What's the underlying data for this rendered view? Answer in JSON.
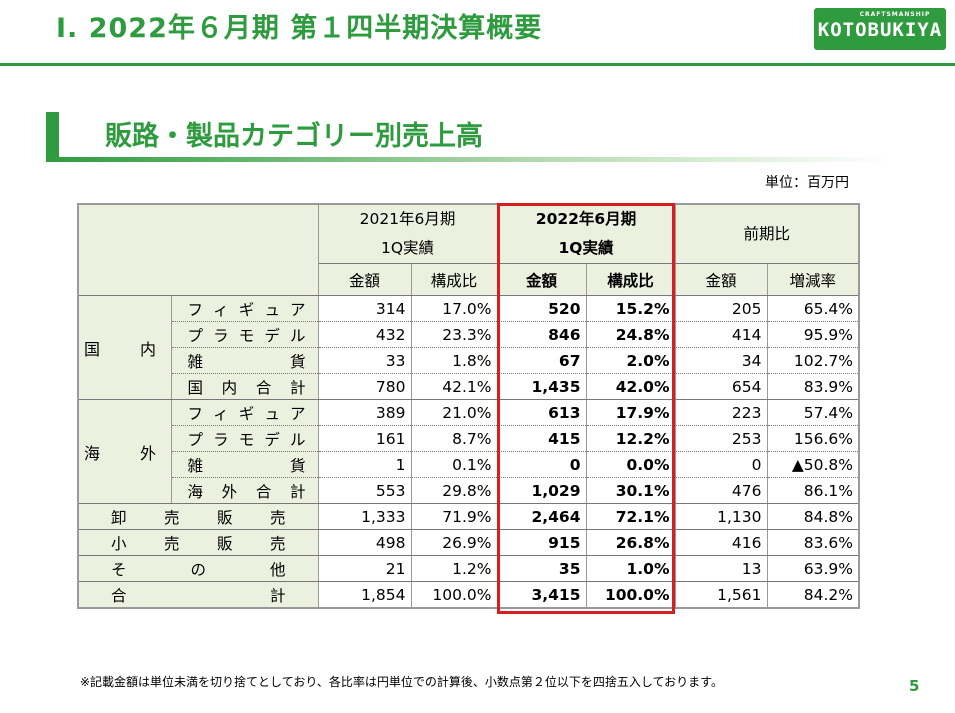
{
  "header": {
    "title": "Ⅰ. 2022年６月期 第１四半期決算概要",
    "logo_sub": "CRAFTSMANSHIP",
    "logo_main": "KOTOBUKIYA"
  },
  "section": {
    "title": "販路・製品カテゴリー別売上高"
  },
  "unit_label": "単位：百万円",
  "table": {
    "col_groups": [
      "2021年6月期\n1Q実績",
      "2022年6月期\n1Q実績",
      "前期比"
    ],
    "col_groups_lines": [
      [
        "2021年6月期",
        "1Q実績"
      ],
      [
        "2022年6月期",
        "1Q実績"
      ],
      [
        "前期比"
      ]
    ],
    "sub_headers": [
      "金額",
      "構成比",
      "金額",
      "構成比",
      "金額",
      "増減率"
    ],
    "segments": [
      {
        "name": "国　内",
        "rows": [
          {
            "label": "フィギュア",
            "v": [
              "314",
              "17.0%",
              "520",
              "15.2%",
              "205",
              "65.4%"
            ]
          },
          {
            "label": "プラモデル",
            "v": [
              "432",
              "23.3%",
              "846",
              "24.8%",
              "414",
              "95.9%"
            ]
          },
          {
            "label": "雑貨",
            "v": [
              "33",
              "1.8%",
              "67",
              "2.0%",
              "34",
              "102.7%"
            ]
          },
          {
            "label": "国内合計",
            "v": [
              "780",
              "42.1%",
              "1,435",
              "42.0%",
              "654",
              "83.9%"
            ]
          }
        ]
      },
      {
        "name": "海　外",
        "rows": [
          {
            "label": "フィギュア",
            "v": [
              "389",
              "21.0%",
              "613",
              "17.9%",
              "223",
              "57.4%"
            ]
          },
          {
            "label": "プラモデル",
            "v": [
              "161",
              "8.7%",
              "415",
              "12.2%",
              "253",
              "156.6%"
            ]
          },
          {
            "label": "雑貨",
            "v": [
              "1",
              "0.1%",
              "0",
              "0.0%",
              "0",
              "▲50.8%"
            ]
          },
          {
            "label": "海外合計",
            "v": [
              "553",
              "29.8%",
              "1,029",
              "30.1%",
              "476",
              "86.1%"
            ]
          }
        ]
      }
    ],
    "totals": [
      {
        "label": "卸売販売",
        "v": [
          "1,333",
          "71.9%",
          "2,464",
          "72.1%",
          "1,130",
          "84.8%"
        ]
      },
      {
        "label": "小売販売",
        "v": [
          "498",
          "26.9%",
          "915",
          "26.8%",
          "416",
          "83.6%"
        ]
      },
      {
        "label": "その他",
        "v": [
          "21",
          "1.2%",
          "35",
          "1.0%",
          "13",
          "63.9%"
        ]
      },
      {
        "label": "合計",
        "v": [
          "1,854",
          "100.0%",
          "3,415",
          "100.0%",
          "1,561",
          "84.2%"
        ]
      }
    ]
  },
  "footnote": "※記載金額は単位未満を切り捨てとしており、各比率は円単位での計算後、小数点第２位以下を四捨五入しております。",
  "page_number": "5",
  "colors": {
    "brand_green": "#2e9b3e",
    "header_fill": "#ebf1de",
    "highlight_border": "#d81e1e"
  }
}
